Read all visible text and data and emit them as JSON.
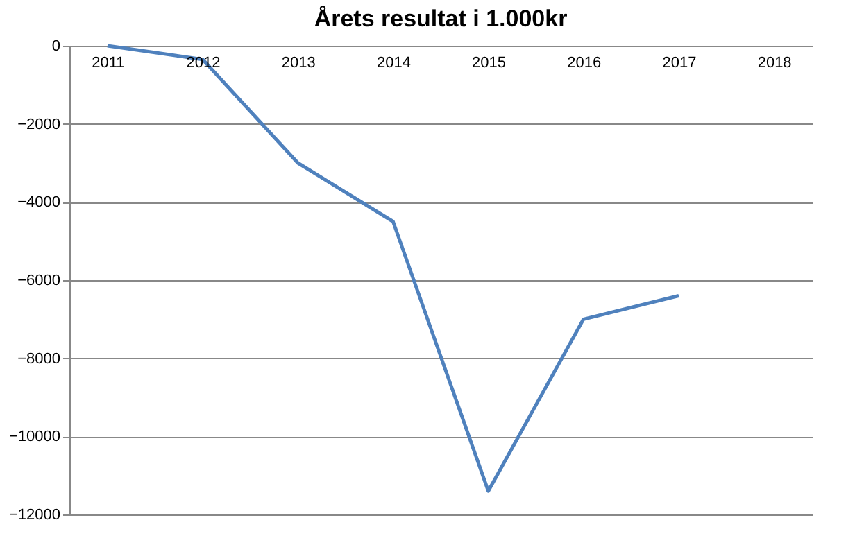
{
  "chart_data": {
    "type": "line",
    "title": "Årets resultat i 1.000kr",
    "categories": [
      "2011",
      "2012",
      "2013",
      "2014",
      "2015",
      "2016",
      "2017",
      "2018"
    ],
    "series": [
      {
        "color": "#4f81bd",
        "values": [
          0,
          -350,
          -3000,
          -4500,
          -11400,
          -7000,
          -6400,
          null
        ]
      }
    ],
    "ylim": [
      -12000,
      0
    ],
    "yticks": [
      -12000,
      -10000,
      -8000,
      -6000,
      -4000,
      -2000,
      0
    ],
    "grid": "y",
    "marker": "none",
    "line_style": "solid"
  }
}
